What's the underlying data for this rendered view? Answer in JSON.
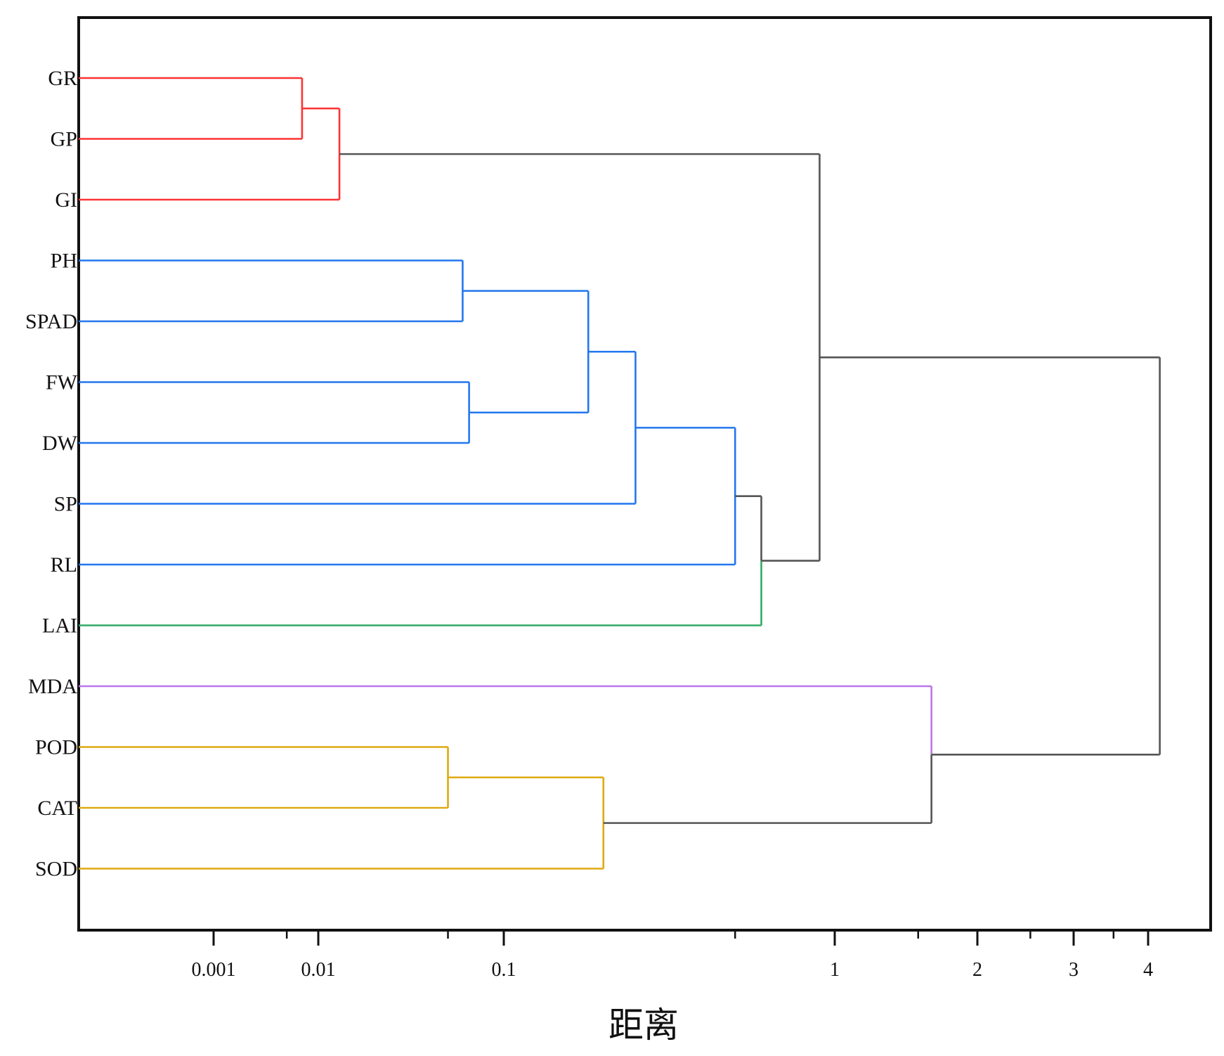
{
  "chart_data": {
    "type": "dendrogram",
    "orientation": "horizontal",
    "title": "",
    "xlabel": "距离",
    "ylabel": "",
    "x_scale": "custom-log-like",
    "x_ticks": [
      {
        "value": 0.001,
        "label": "0.001"
      },
      {
        "value": 0.01,
        "label": "0.01"
      },
      {
        "value": 0.1,
        "label": "0.1"
      },
      {
        "value": 1,
        "label": "1"
      },
      {
        "value": 2,
        "label": "2"
      },
      {
        "value": 3,
        "label": "3"
      },
      {
        "value": 4,
        "label": "4"
      }
    ],
    "minor_ticks": [
      0.005,
      0.05,
      0.5,
      1.5,
      2.5,
      3.5
    ],
    "grid": false,
    "leaves": [
      "GR",
      "GP",
      "GI",
      "PH",
      "SPAD",
      "FW",
      "DW",
      "SP",
      "RL",
      "LAI",
      "MDA",
      "POD",
      "CAT",
      "SOD"
    ],
    "merges": [
      {
        "id": "m_gr_gp",
        "children": [
          "GR",
          "GP"
        ],
        "distance": 0.007,
        "color": "#ff3333"
      },
      {
        "id": "m_g",
        "children": [
          "m_gr_gp",
          "GI"
        ],
        "distance": 0.013,
        "color": "#ff3333"
      },
      {
        "id": "m_ph_spad",
        "children": [
          "PH",
          "SPAD"
        ],
        "distance": 0.06,
        "color": "#2277ee"
      },
      {
        "id": "m_fw_dw",
        "children": [
          "FW",
          "DW"
        ],
        "distance": 0.065,
        "color": "#2277ee"
      },
      {
        "id": "m_growth4",
        "children": [
          "m_ph_spad",
          "m_fw_dw"
        ],
        "distance": 0.18,
        "color": "#2277ee"
      },
      {
        "id": "m_growth5",
        "children": [
          "m_growth4",
          "SP"
        ],
        "distance": 0.25,
        "color": "#2277ee"
      },
      {
        "id": "m_growth6",
        "children": [
          "m_growth5",
          "RL"
        ],
        "distance": 0.5,
        "color": "#2277ee"
      },
      {
        "id": "m_growth7",
        "children": [
          "m_growth6",
          "LAI"
        ],
        "distance": 0.6,
        "color": "#555555",
        "child_colors": [
          "#555555",
          "#33aa66"
        ]
      },
      {
        "id": "m_top",
        "children": [
          "m_g",
          "m_growth7"
        ],
        "distance": 0.9,
        "color": "#555555"
      },
      {
        "id": "m_pod_cat",
        "children": [
          "POD",
          "CAT"
        ],
        "distance": 0.05,
        "color": "#ddaa11"
      },
      {
        "id": "m_enz",
        "children": [
          "m_pod_cat",
          "SOD"
        ],
        "distance": 0.2,
        "color": "#ddaa11"
      },
      {
        "id": "m_stress",
        "children": [
          "MDA",
          "m_enz"
        ],
        "distance": 1.6,
        "color": "#555555",
        "child_colors": [
          "#bb77ee",
          "#555555"
        ]
      },
      {
        "id": "m_root",
        "children": [
          "m_top",
          "m_stress"
        ],
        "distance": 4.2,
        "color": "#555555"
      }
    ]
  }
}
